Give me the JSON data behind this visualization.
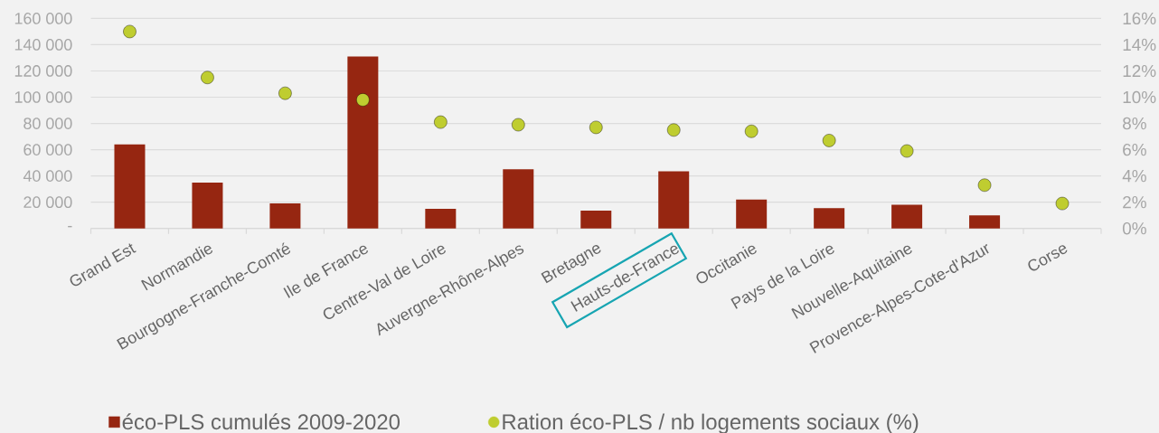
{
  "chart_data": {
    "type": "bar",
    "categories": [
      "Grand Est",
      "Normandie",
      "Bourgogne-Franche-Comté",
      "Ile de France",
      "Centre-Val de Loire",
      "Auvergne-Rhône-Alpes",
      "Bretagne",
      "Hauts-de-France",
      "Occitanie",
      "Pays de la Loire",
      "Nouvelle-Aquitaine",
      "Provence-Alpes-Cote-d'Azur",
      "Corse"
    ],
    "series": [
      {
        "name": "éco-PLS cumulés 2009-2020",
        "color": "#962611",
        "values": [
          64000,
          35000,
          19000,
          131000,
          15000,
          45000,
          13500,
          43500,
          22000,
          15500,
          18000,
          10000,
          null
        ]
      },
      {
        "name": "Ration éco-PLS / nb logements sociaux (%)",
        "type": "scatter",
        "axis": "y2",
        "marker": "circle",
        "color": "#bfcd30",
        "values": [
          15.0,
          11.5,
          10.3,
          9.8,
          8.1,
          7.9,
          7.7,
          7.5,
          7.4,
          6.7,
          5.9,
          3.3,
          1.9
        ]
      }
    ],
    "ylim": [
      0,
      160000
    ],
    "yticks": [
      {
        "value": 0,
        "label": "-"
      },
      {
        "value": 20000,
        "label": "20 000"
      },
      {
        "value": 40000,
        "label": "40 000"
      },
      {
        "value": 60000,
        "label": "60 000"
      },
      {
        "value": 80000,
        "label": "80 000"
      },
      {
        "value": 100000,
        "label": "100 000"
      },
      {
        "value": 120000,
        "label": "120 000"
      },
      {
        "value": 140000,
        "label": "140 000"
      },
      {
        "value": 160000,
        "label": "160 000"
      }
    ],
    "y2lim": [
      0,
      16
    ],
    "y2ticks": [
      {
        "value": 0,
        "label": "0%"
      },
      {
        "value": 2,
        "label": "2%"
      },
      {
        "value": 4,
        "label": "4%"
      },
      {
        "value": 6,
        "label": "6%"
      },
      {
        "value": 8,
        "label": "8%"
      },
      {
        "value": 10,
        "label": "10%"
      },
      {
        "value": 12,
        "label": "12%"
      },
      {
        "value": 14,
        "label": "14%"
      },
      {
        "value": 16,
        "label": "16%"
      }
    ],
    "grid": "y",
    "legend": "bottom"
  }
}
